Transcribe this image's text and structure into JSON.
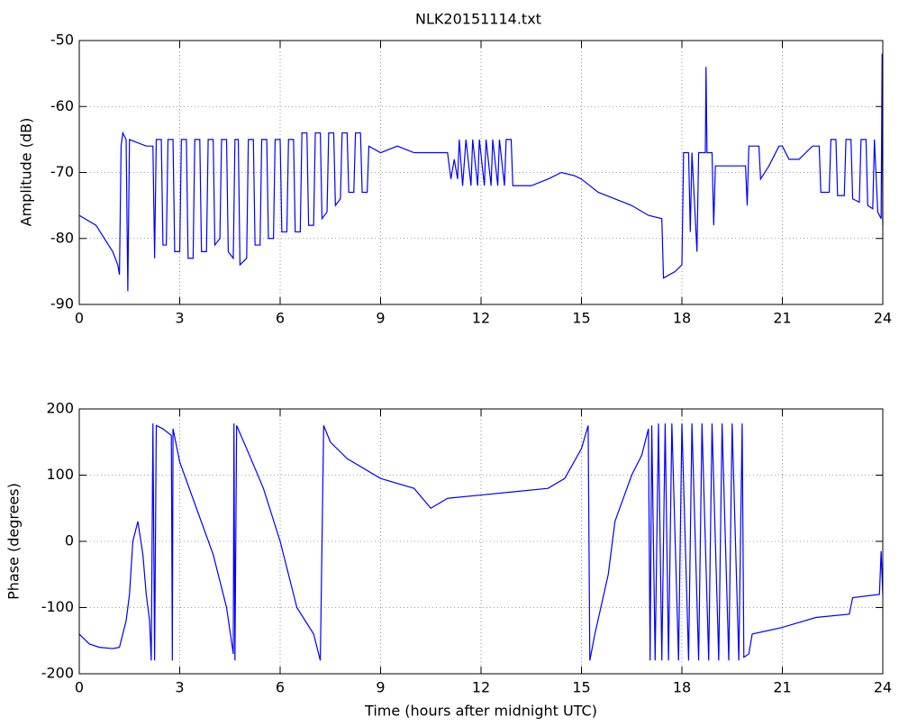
{
  "chart_data": [
    {
      "type": "line",
      "title": "NLK20151114.txt",
      "ylabel": "Amplitude (dB)",
      "color": "#0000ff",
      "grid": true,
      "xlim": [
        0,
        24
      ],
      "xticks": [
        0,
        3,
        6,
        9,
        12,
        15,
        18,
        21,
        24
      ],
      "ylim": [
        -90,
        -50
      ],
      "yticks": [
        -90,
        -80,
        -70,
        -60,
        -50
      ],
      "x": [
        0,
        0.5,
        1.0,
        1.15,
        1.2,
        1.25,
        1.3,
        1.4,
        1.45,
        1.5,
        2.0,
        2.2,
        2.25,
        2.3,
        2.45,
        2.5,
        2.6,
        2.65,
        2.8,
        2.85,
        3.0,
        3.05,
        3.2,
        3.25,
        3.4,
        3.45,
        3.6,
        3.65,
        3.8,
        3.85,
        4.0,
        4.05,
        4.2,
        4.25,
        4.4,
        4.45,
        4.6,
        4.65,
        4.75,
        4.8,
        5.0,
        5.05,
        5.2,
        5.25,
        5.4,
        5.45,
        5.6,
        5.65,
        5.8,
        5.85,
        6.0,
        6.05,
        6.2,
        6.25,
        6.4,
        6.45,
        6.6,
        6.65,
        6.8,
        6.85,
        7.0,
        7.05,
        7.2,
        7.25,
        7.4,
        7.45,
        7.6,
        7.65,
        7.8,
        7.85,
        8.0,
        8.05,
        8.2,
        8.25,
        8.4,
        8.45,
        8.6,
        8.65,
        9.0,
        9.5,
        10,
        10.5,
        11,
        11.1,
        11.2,
        11.3,
        11.35,
        11.45,
        11.55,
        11.7,
        11.75,
        11.9,
        11.95,
        12.1,
        12.15,
        12.3,
        12.35,
        12.5,
        12.55,
        12.7,
        12.75,
        12.9,
        12.95,
        13.5,
        14,
        14.4,
        14.8,
        15,
        15.5,
        16,
        16.5,
        17,
        17.4,
        17.45,
        17.8,
        18.0,
        18.05,
        18.2,
        18.25,
        18.3,
        18.45,
        18.5,
        18.7,
        18.72,
        18.75,
        18.9,
        18.95,
        19.0,
        19.5,
        19.9,
        19.95,
        20.0,
        20.3,
        20.35,
        20.6,
        20.9,
        21.0,
        21.2,
        21.5,
        21.9,
        22.1,
        22.15,
        22.4,
        22.45,
        22.6,
        22.65,
        22.85,
        22.9,
        23.05,
        23.1,
        23.3,
        23.35,
        23.5,
        23.55,
        23.7,
        23.75,
        23.85,
        23.95,
        23.98,
        24
      ],
      "values": [
        -76.5,
        -78,
        -82,
        -84,
        -85.5,
        -66,
        -64,
        -65,
        -88,
        -65,
        -66,
        -66,
        -83,
        -65,
        -65,
        -81,
        -81,
        -65,
        -65,
        -82,
        -82,
        -65,
        -65,
        -83,
        -83,
        -65,
        -65,
        -82,
        -82,
        -65,
        -65,
        -81,
        -80,
        -65,
        -65,
        -82,
        -83,
        -65,
        -65,
        -84,
        -83,
        -65,
        -65,
        -81,
        -81,
        -65,
        -65,
        -80,
        -80,
        -65,
        -65,
        -79,
        -79,
        -65,
        -65,
        -79,
        -79,
        -64,
        -64,
        -78,
        -78,
        -64,
        -64,
        -77,
        -76,
        -64,
        -64,
        -75,
        -74,
        -64,
        -64,
        -73,
        -73,
        -64,
        -64,
        -73,
        -73,
        -66,
        -67,
        -66,
        -67,
        -67,
        -67,
        -71,
        -68,
        -71,
        -65,
        -72,
        -65,
        -72,
        -65,
        -72,
        -65,
        -72,
        -65,
        -72,
        -65,
        -72,
        -65,
        -72,
        -65,
        -65,
        -72,
        -72,
        -71,
        -70,
        -70.5,
        -71,
        -73,
        -74,
        -75,
        -76.5,
        -77,
        -86,
        -85,
        -84,
        -67,
        -67,
        -79,
        -67,
        -82,
        -67,
        -67,
        -54,
        -67,
        -67,
        -78,
        -69,
        -69,
        -69,
        -75,
        -66,
        -66,
        -71,
        -69,
        -66,
        -66,
        -68,
        -68,
        -66,
        -66,
        -73,
        -73,
        -65,
        -65,
        -73.5,
        -73.5,
        -65,
        -65,
        -74,
        -74.5,
        -65,
        -65,
        -75,
        -75.5,
        -65,
        -76,
        -77,
        -52,
        -78
      ]
    },
    {
      "type": "line",
      "xlabel": "Time (hours after midnight UTC)",
      "ylabel": "Phase (degrees)",
      "color": "#0000ff",
      "grid": true,
      "xlim": [
        0,
        24
      ],
      "xticks": [
        0,
        3,
        6,
        9,
        12,
        15,
        18,
        21,
        24
      ],
      "ylim": [
        -200,
        200
      ],
      "yticks": [
        -200,
        -100,
        0,
        100,
        200
      ],
      "x": [
        0,
        0.3,
        0.6,
        1.0,
        1.2,
        1.4,
        1.5,
        1.6,
        1.75,
        1.9,
        2.0,
        2.1,
        2.15,
        2.2,
        2.25,
        2.3,
        2.5,
        2.75,
        2.78,
        2.8,
        3.0,
        3.5,
        4.0,
        4.4,
        4.6,
        4.62,
        4.65,
        4.7,
        5.0,
        5.5,
        6.0,
        6.5,
        7.0,
        7.2,
        7.3,
        7.5,
        8,
        9,
        10,
        10.5,
        11,
        12,
        13,
        14,
        14.5,
        15.0,
        15.2,
        15.25,
        15.4,
        15.8,
        16.0,
        16.5,
        16.8,
        17.0,
        17.05,
        17.1,
        17.2,
        17.3,
        17.4,
        17.5,
        17.6,
        17.7,
        17.9,
        18.0,
        18.2,
        18.3,
        18.5,
        18.6,
        18.8,
        18.9,
        19.1,
        19.2,
        19.4,
        19.5,
        19.7,
        19.8,
        19.85,
        20.0,
        20.1,
        21,
        22,
        23,
        23.1,
        23.9,
        23.95,
        24
      ],
      "values": [
        -140,
        -155,
        -160,
        -162,
        -160,
        -120,
        -80,
        0,
        30,
        -20,
        -80,
        -120,
        -180,
        178,
        -180,
        175,
        170,
        160,
        -180,
        170,
        120,
        50,
        -20,
        -100,
        -170,
        178,
        -180,
        175,
        140,
        80,
        0,
        -100,
        -140,
        -180,
        175,
        150,
        125,
        95,
        80,
        50,
        65,
        70,
        75,
        80,
        95,
        140,
        175,
        -180,
        -140,
        -50,
        30,
        100,
        130,
        170,
        -180,
        175,
        -180,
        178,
        -180,
        178,
        -180,
        178,
        -180,
        178,
        -180,
        178,
        -180,
        178,
        -180,
        178,
        -180,
        178,
        -180,
        178,
        -180,
        178,
        -175,
        -170,
        -140,
        -130,
        -115,
        -110,
        -85,
        -80,
        -15,
        -80
      ]
    }
  ]
}
